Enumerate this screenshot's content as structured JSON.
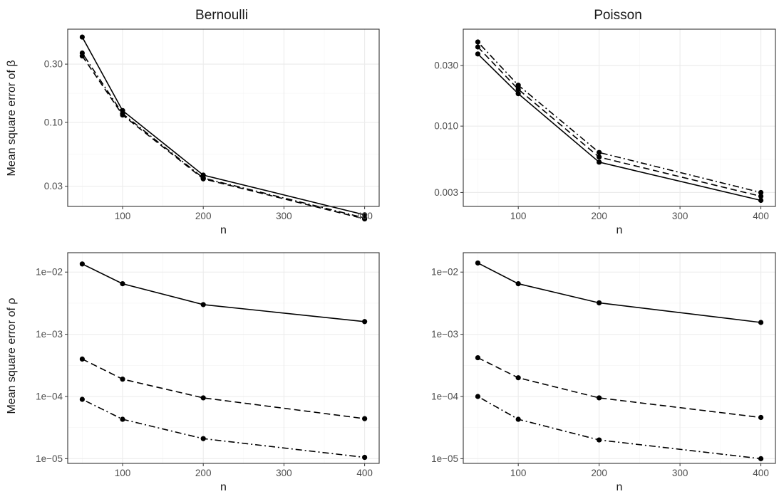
{
  "colors": {
    "background": "#ffffff",
    "grid": "#ebebeb",
    "line": "#000000",
    "border": "#333333"
  },
  "figure": {
    "column_titles": [
      "Bernoulli",
      "Poisson"
    ],
    "row_ylabels": [
      "Mean square error of β",
      "Mean square error of ρ"
    ]
  },
  "chart_data": [
    {
      "type": "line",
      "row": 0,
      "col": 0,
      "title": "Bernoulli",
      "xlabel": "n",
      "ylabel": "Mean square error of β",
      "yscale": "log",
      "xlim": [
        32,
        418
      ],
      "ylim": [
        0.0205,
        0.58
      ],
      "xticks": [
        100,
        200,
        300,
        400
      ],
      "xtick_labels": [
        "100",
        "200",
        "300",
        "400"
      ],
      "yticks": [
        0.03,
        0.1,
        0.3
      ],
      "ytick_labels": [
        "0.03",
        "0.10",
        "0.30"
      ],
      "grid": true,
      "x": [
        50,
        100,
        200,
        400
      ],
      "series": [
        {
          "linestyle": "solid",
          "values": [
            0.5,
            0.125,
            0.037,
            0.0175
          ]
        },
        {
          "linestyle": "dashed",
          "values": [
            0.35,
            0.115,
            0.0345,
            0.0162
          ]
        },
        {
          "linestyle": "dotdash",
          "values": [
            0.37,
            0.118,
            0.035,
            0.0165
          ]
        }
      ]
    },
    {
      "type": "line",
      "row": 0,
      "col": 1,
      "title": "Poisson",
      "xlabel": "n",
      "ylabel": "",
      "yscale": "log",
      "xlim": [
        32,
        418
      ],
      "ylim": [
        0.00233,
        0.058
      ],
      "xticks": [
        100,
        200,
        300,
        400
      ],
      "xtick_labels": [
        "100",
        "200",
        "300",
        "400"
      ],
      "yticks": [
        0.003,
        0.01,
        0.03
      ],
      "ytick_labels": [
        "0.003",
        "0.010",
        "0.030"
      ],
      "grid": true,
      "x": [
        50,
        100,
        200,
        400
      ],
      "series": [
        {
          "linestyle": "solid",
          "values": [
            0.037,
            0.018,
            0.0052,
            0.0026
          ]
        },
        {
          "linestyle": "dashed",
          "values": [
            0.042,
            0.0195,
            0.0057,
            0.0028
          ]
        },
        {
          "linestyle": "dotdash",
          "values": [
            0.046,
            0.021,
            0.0062,
            0.003
          ]
        }
      ]
    },
    {
      "type": "line",
      "row": 1,
      "col": 0,
      "title": "",
      "xlabel": "n",
      "ylabel": "Mean square error of ρ",
      "yscale": "log",
      "xlim": [
        32,
        418
      ],
      "ylim": [
        8.4e-06,
        0.0205
      ],
      "xticks": [
        100,
        200,
        300,
        400
      ],
      "xtick_labels": [
        "100",
        "200",
        "300",
        "400"
      ],
      "yticks": [
        1e-05,
        0.0001,
        0.001,
        0.01
      ],
      "ytick_labels": [
        "1e−05",
        "1e−04",
        "1e−03",
        "1e−02"
      ],
      "grid": true,
      "x": [
        50,
        100,
        200,
        400
      ],
      "series": [
        {
          "linestyle": "solid",
          "values": [
            0.0135,
            0.0065,
            0.003,
            0.0016
          ]
        },
        {
          "linestyle": "dashed",
          "values": [
            0.0004,
            0.00019,
            9.5e-05,
            4.4e-05
          ]
        },
        {
          "linestyle": "dotdash",
          "values": [
            9e-05,
            4.3e-05,
            2.1e-05,
            1.05e-05
          ]
        }
      ]
    },
    {
      "type": "line",
      "row": 1,
      "col": 1,
      "title": "",
      "xlabel": "n",
      "ylabel": "",
      "yscale": "log",
      "xlim": [
        32,
        418
      ],
      "ylim": [
        8.4e-06,
        0.0205
      ],
      "xticks": [
        100,
        200,
        300,
        400
      ],
      "xtick_labels": [
        "100",
        "200",
        "300",
        "400"
      ],
      "yticks": [
        1e-05,
        0.0001,
        0.001,
        0.01
      ],
      "ytick_labels": [
        "1e−05",
        "1e−04",
        "1e−03",
        "1e−02"
      ],
      "grid": true,
      "x": [
        50,
        100,
        200,
        400
      ],
      "series": [
        {
          "linestyle": "solid",
          "values": [
            0.014,
            0.0065,
            0.0032,
            0.00155
          ]
        },
        {
          "linestyle": "dashed",
          "values": [
            0.00042,
            0.0002,
            9.5e-05,
            4.6e-05
          ]
        },
        {
          "linestyle": "dotdash",
          "values": [
            0.0001,
            4.3e-05,
            2e-05,
            1e-05
          ]
        }
      ]
    }
  ]
}
